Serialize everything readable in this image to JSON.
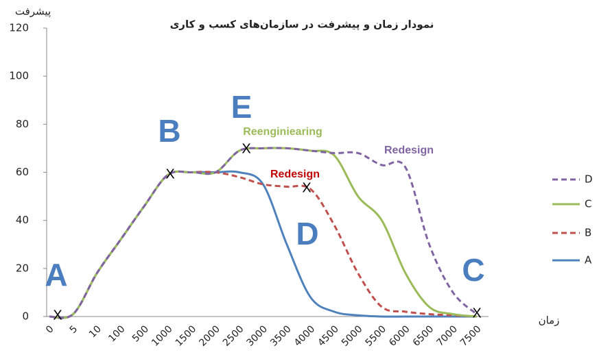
{
  "chart_data": {
    "type": "line",
    "title": "نمودار زمان و پیشرفت در سازمان‌های کسب و کاری",
    "y_label": "پیشرفت",
    "x_label": "زمان",
    "categories": [
      "0",
      "5",
      "10",
      "100",
      "500",
      "1000",
      "1500",
      "2000",
      "2500",
      "3000",
      "3500",
      "4000",
      "4500",
      "5000",
      "5500",
      "6000",
      "6500",
      "7000",
      "7500"
    ],
    "ylim": [
      0,
      120
    ],
    "yticks": [
      0,
      20,
      40,
      60,
      80,
      100,
      120
    ],
    "grid": false,
    "legend": "right",
    "series": [
      {
        "name": "A",
        "color": "#4f81bd",
        "dashed": false,
        "values": [
          0,
          1,
          18,
          32,
          46,
          59,
          60,
          60,
          60,
          55,
          30,
          8,
          2,
          0.5,
          0,
          0,
          0,
          0,
          0
        ]
      },
      {
        "name": "B",
        "color": "#c0504d",
        "dashed": true,
        "values": [
          0,
          1,
          18,
          32,
          46,
          59,
          60,
          60,
          58,
          55,
          54,
          53,
          38,
          18,
          4,
          2,
          1,
          0.5,
          0
        ]
      },
      {
        "name": "C",
        "color": "#9bbb59",
        "dashed": false,
        "values": [
          0,
          1,
          18,
          32,
          46,
          59,
          60,
          60,
          69,
          70,
          70,
          69,
          67,
          50,
          40,
          18,
          4,
          1,
          0
        ]
      },
      {
        "name": "D",
        "color": "#8064a2",
        "dashed": true,
        "values": [
          0,
          1,
          18,
          32,
          46,
          59,
          60,
          60,
          69,
          70,
          70,
          69,
          68,
          68,
          63,
          62,
          30,
          10,
          1
        ]
      }
    ],
    "annotations": [
      {
        "text": "A"
      },
      {
        "text": "B"
      },
      {
        "text": "C"
      },
      {
        "text": "D"
      },
      {
        "text": "E"
      },
      {
        "text": "Reenginiearing",
        "color": "#9bbb59"
      },
      {
        "text": "Redesign",
        "color": "#c00000"
      },
      {
        "text": "Redesign",
        "color": "#8064a2"
      }
    ],
    "markers": [
      "X",
      "X",
      "X",
      "X",
      "X"
    ]
  }
}
